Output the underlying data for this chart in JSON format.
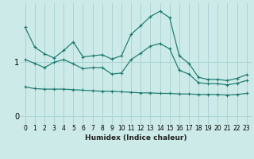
{
  "xlabel": "Humidex (Indice chaleur)",
  "background_color": "#cceae8",
  "grid_color": "#aad4d2",
  "line_color": "#1a7a6e",
  "series": [
    {
      "x": [
        0,
        1,
        2,
        3,
        4,
        5,
        6,
        7,
        8,
        9,
        10,
        11,
        12,
        13,
        14,
        15,
        16,
        17,
        18,
        19,
        20,
        21,
        22,
        23
      ],
      "y": [
        1.65,
        1.28,
        1.16,
        1.08,
        1.22,
        1.38,
        1.1,
        1.12,
        1.14,
        1.06,
        1.12,
        1.52,
        1.68,
        1.85,
        1.95,
        1.83,
        1.12,
        0.98,
        0.72,
        0.68,
        0.68,
        0.66,
        0.7,
        0.77
      ]
    },
    {
      "x": [
        0,
        1,
        2,
        3,
        4,
        5,
        6,
        7,
        8,
        9,
        10,
        11,
        12,
        13,
        14,
        15,
        16,
        17,
        18,
        19,
        20,
        21,
        22,
        23
      ],
      "y": [
        1.05,
        0.98,
        0.9,
        1.0,
        1.05,
        0.97,
        0.88,
        0.9,
        0.9,
        0.78,
        0.8,
        1.05,
        1.17,
        1.3,
        1.35,
        1.25,
        0.85,
        0.78,
        0.62,
        0.6,
        0.6,
        0.58,
        0.61,
        0.66
      ]
    },
    {
      "x": [
        0,
        1,
        2,
        3,
        4,
        5,
        6,
        7,
        8,
        9,
        10,
        11,
        12,
        13,
        14,
        15,
        16,
        17,
        18,
        19,
        20,
        21,
        22,
        23
      ],
      "y": [
        0.54,
        0.51,
        0.5,
        0.5,
        0.5,
        0.49,
        0.48,
        0.47,
        0.46,
        0.46,
        0.45,
        0.44,
        0.43,
        0.43,
        0.42,
        0.42,
        0.41,
        0.41,
        0.4,
        0.4,
        0.4,
        0.39,
        0.4,
        0.42
      ]
    }
  ],
  "ylim": [
    -0.15,
    2.1
  ],
  "xlim": [
    -0.5,
    23.5
  ],
  "yticks": [
    0,
    1
  ],
  "xticks": [
    0,
    1,
    2,
    3,
    4,
    5,
    6,
    7,
    8,
    9,
    10,
    11,
    12,
    13,
    14,
    15,
    16,
    17,
    18,
    19,
    20,
    21,
    22,
    23
  ]
}
